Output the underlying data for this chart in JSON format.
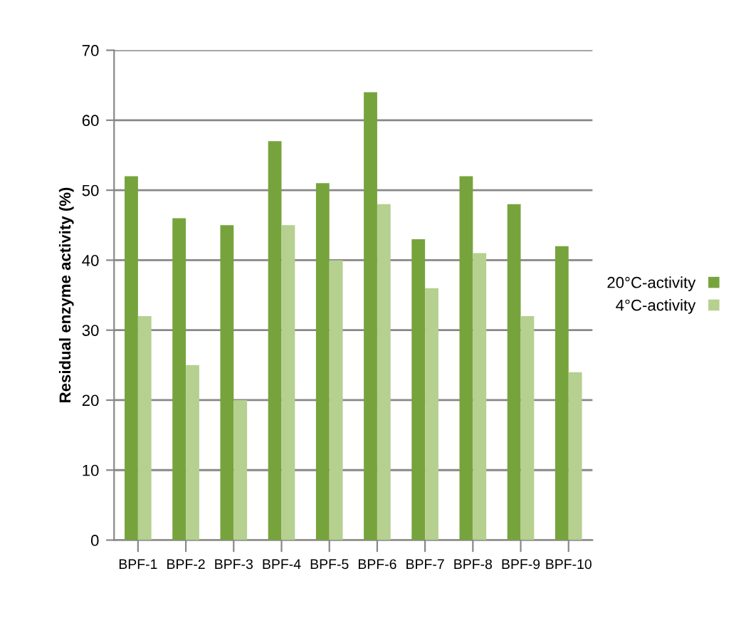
{
  "chart_data": {
    "type": "bar",
    "ylabel": "Residual enzyme activity (%)",
    "categories": [
      "BPF-1",
      "BPF-2",
      "BPF-3",
      "BPF-4",
      "BPF-5",
      "BPF-6",
      "BPF-7",
      "BPF-8",
      "BPF-9",
      "BPF-10"
    ],
    "series": [
      {
        "name": "20°C-activity",
        "color": "#77a33d",
        "values": [
          52,
          46,
          45,
          57,
          51,
          64,
          43,
          52,
          48,
          42
        ]
      },
      {
        "name": "4°C-activity",
        "color": "#b5d08f",
        "values": [
          32,
          25,
          20,
          45,
          40,
          48,
          36,
          41,
          32,
          24
        ]
      }
    ],
    "ylim": [
      0,
      70
    ],
    "yticks": [
      0,
      10,
      20,
      30,
      40,
      50,
      60,
      70
    ],
    "grid": "y",
    "legend": "right"
  }
}
